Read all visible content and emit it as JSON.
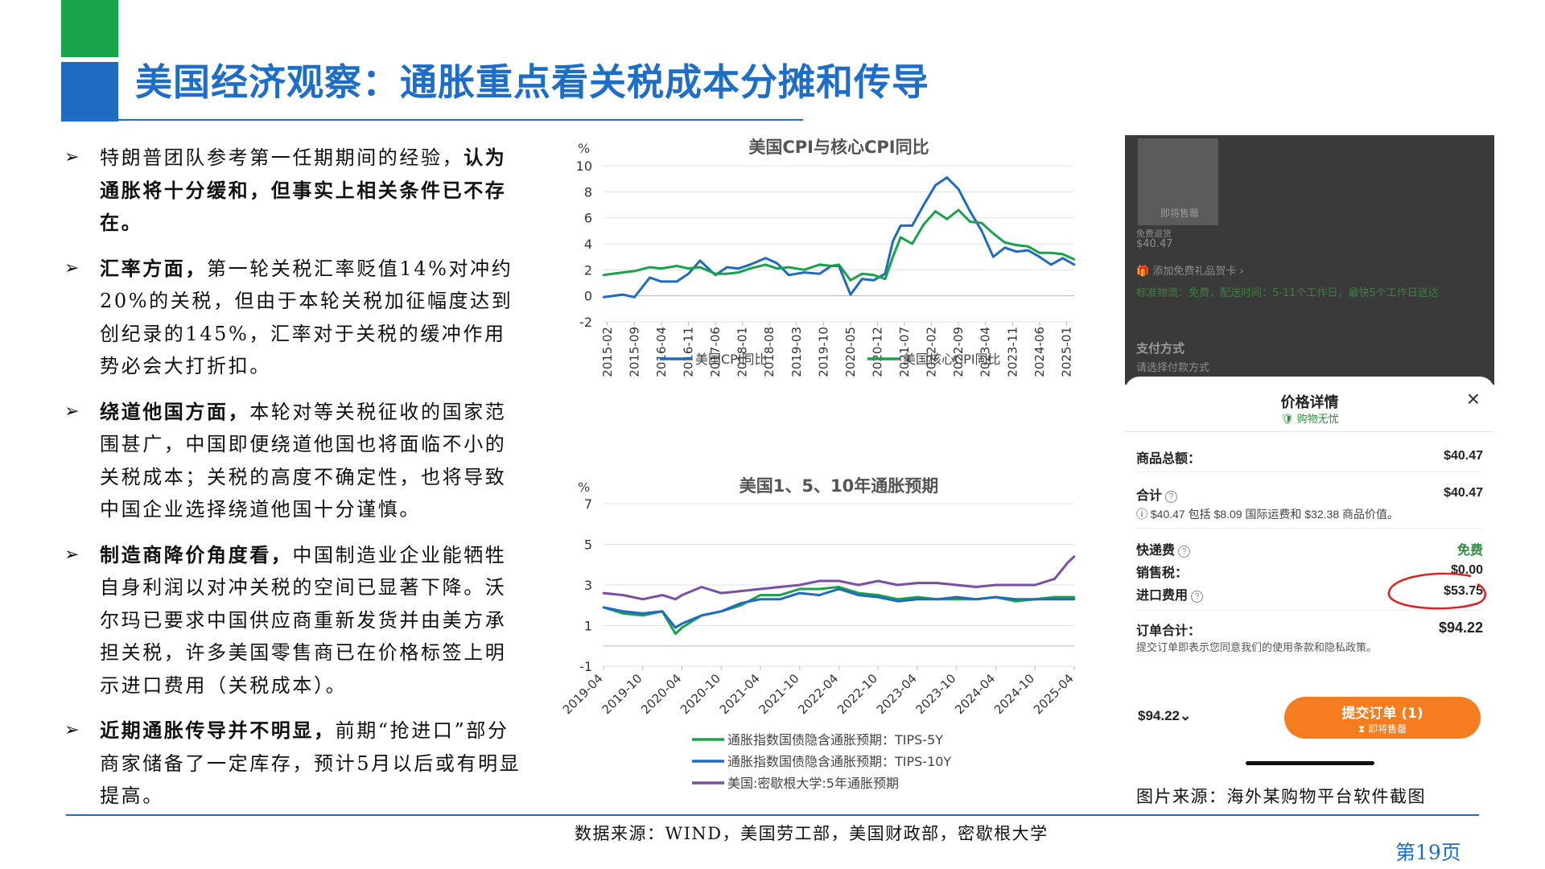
{
  "slide": {
    "title": "美国经济观察：通胀重点看关税成本分摊和传导",
    "source": "数据来源：WIND，美国劳工部，美国财政部，密歇根大学",
    "page": "第19页",
    "colors": {
      "accent_blue": "#1e6ec8",
      "accent_green": "#19a34a"
    }
  },
  "bullets": [
    {
      "bold": "",
      "text_before": "特朗普团队参考第一任期期间的经验，",
      "bold_after": "认为通胀将十分缓和，但事实上相关条件已不存在。",
      "text_after": ""
    },
    {
      "bold": "汇率方面，",
      "text_before": "",
      "bold_after": "",
      "text_after": "第一轮关税汇率贬值14%对冲约20%的关税，但由于本轮关税加征幅度达到创纪录的145%，汇率对于关税的缓冲作用势必会大打折扣。"
    },
    {
      "bold": "绕道他国方面，",
      "text_before": "",
      "bold_after": "",
      "text_after": "本轮对等关税征收的国家范围甚广，中国即便绕道他国也将面临不小的关税成本；关税的高度不确定性，也将导致中国企业选择绕道他国十分谨慎。"
    },
    {
      "bold": "制造商降价角度看，",
      "text_before": "",
      "bold_after": "",
      "text_after": "中国制造业企业能牺牲自身利润以对冲关税的空间已显著下降。沃尔玛已要求中国供应商重新发货并由美方承担关税，许多美国零售商已在价格标签上明示进口费用（关税成本）。"
    },
    {
      "bold": "近期通胀传导并不明显，",
      "text_before": "",
      "bold_after": "",
      "text_after": "前期“抢进口”部分商家储备了一定库存，预计5月以后或有明显提高。"
    }
  ],
  "chart_data": [
    {
      "type": "line",
      "title": "美国CPI与核心CPI同比",
      "unit": "%",
      "ylim": [
        -2,
        10
      ],
      "yticks": [
        -2,
        0,
        2,
        4,
        6,
        8,
        10
      ],
      "grid": true,
      "legend": "bottom",
      "xtick_labels": [
        "2015-02",
        "2015-09",
        "2016-04",
        "2016-11",
        "2017-06",
        "2018-01",
        "2018-08",
        "2019-03",
        "2019-10",
        "2020-05",
        "2020-12",
        "2021-07",
        "2022-02",
        "2022-09",
        "2023-04",
        "2023-11",
        "2024-06",
        "2025-01"
      ],
      "x": [
        "2015-01",
        "2015-06",
        "2015-09",
        "2016-01",
        "2016-04",
        "2016-08",
        "2016-11",
        "2017-02",
        "2017-06",
        "2017-09",
        "2017-12",
        "2018-03",
        "2018-07",
        "2018-10",
        "2019-01",
        "2019-05",
        "2019-09",
        "2019-12",
        "2020-02",
        "2020-05",
        "2020-08",
        "2020-11",
        "2021-02",
        "2021-04",
        "2021-06",
        "2021-09",
        "2021-12",
        "2022-03",
        "2022-06",
        "2022-09",
        "2022-12",
        "2023-03",
        "2023-06",
        "2023-09",
        "2023-12",
        "2024-03",
        "2024-06",
        "2024-09",
        "2024-12",
        "2025-03"
      ],
      "series": [
        {
          "name": "美国CPI同比",
          "color": "#1f6bc2",
          "values": [
            -0.1,
            0.1,
            -0.1,
            1.4,
            1.1,
            1.1,
            1.7,
            2.7,
            1.6,
            2.2,
            2.1,
            2.4,
            2.9,
            2.5,
            1.6,
            1.8,
            1.7,
            2.3,
            2.3,
            0.1,
            1.3,
            1.2,
            1.7,
            4.2,
            5.4,
            5.4,
            7.0,
            8.5,
            9.1,
            8.2,
            6.5,
            5.0,
            3.0,
            3.7,
            3.4,
            3.5,
            3.0,
            2.4,
            2.9,
            2.4
          ]
        },
        {
          "name": "美国核心CPI同比",
          "color": "#1aa14b",
          "values": [
            1.6,
            1.8,
            1.9,
            2.2,
            2.1,
            2.3,
            2.1,
            2.2,
            1.7,
            1.7,
            1.8,
            2.1,
            2.4,
            2.1,
            2.2,
            2.0,
            2.4,
            2.3,
            2.4,
            1.2,
            1.7,
            1.6,
            1.3,
            3.0,
            4.5,
            4.0,
            5.5,
            6.5,
            5.9,
            6.6,
            5.7,
            5.6,
            4.8,
            4.1,
            3.9,
            3.8,
            3.3,
            3.3,
            3.2,
            2.8
          ]
        }
      ]
    },
    {
      "type": "line",
      "title": "美国1、5、10年通胀预期",
      "unit": "%",
      "ylim": [
        -1,
        7
      ],
      "yticks": [
        -1,
        1,
        3,
        5,
        7
      ],
      "grid": true,
      "legend": "bottom",
      "xtick_labels": [
        "2019-04",
        "2019-10",
        "2020-04",
        "2020-10",
        "2021-04",
        "2021-10",
        "2022-04",
        "2022-10",
        "2023-04",
        "2023-10",
        "2024-04",
        "2024-10",
        "2025-04"
      ],
      "x": [
        "2019-04",
        "2019-07",
        "2019-10",
        "2020-01",
        "2020-03",
        "2020-04",
        "2020-07",
        "2020-10",
        "2021-01",
        "2021-04",
        "2021-07",
        "2021-10",
        "2022-01",
        "2022-04",
        "2022-07",
        "2022-10",
        "2023-01",
        "2023-04",
        "2023-07",
        "2023-10",
        "2024-01",
        "2024-04",
        "2024-07",
        "2024-10",
        "2025-01",
        "2025-03",
        "2025-04"
      ],
      "series": [
        {
          "name": "通胀指数国债隐含通胀预期：TIPS-5Y",
          "color": "#1aa14b",
          "values": [
            1.9,
            1.6,
            1.5,
            1.7,
            0.6,
            0.9,
            1.5,
            1.7,
            2.0,
            2.5,
            2.5,
            2.8,
            2.8,
            2.9,
            2.6,
            2.5,
            2.3,
            2.4,
            2.3,
            2.3,
            2.3,
            2.4,
            2.2,
            2.3,
            2.4,
            2.4,
            2.4
          ]
        },
        {
          "name": "通胀指数国债隐含通胀预期：TIPS-10Y",
          "color": "#1f6bc2",
          "values": [
            1.9,
            1.7,
            1.6,
            1.7,
            0.9,
            1.1,
            1.5,
            1.7,
            2.1,
            2.3,
            2.3,
            2.6,
            2.5,
            2.8,
            2.5,
            2.4,
            2.2,
            2.3,
            2.3,
            2.4,
            2.3,
            2.4,
            2.3,
            2.3,
            2.3,
            2.3,
            2.3
          ]
        },
        {
          "name": "美国:密歇根大学:5年通胀预期",
          "color": "#7b4ea3",
          "values": [
            2.6,
            2.5,
            2.3,
            2.5,
            2.3,
            2.5,
            2.9,
            2.6,
            2.7,
            2.8,
            2.9,
            3.0,
            3.2,
            3.2,
            3.0,
            3.2,
            3.0,
            3.1,
            3.1,
            3.0,
            2.9,
            3.0,
            3.0,
            3.0,
            3.3,
            4.1,
            4.4
          ]
        }
      ]
    }
  ],
  "phone": {
    "dim": {
      "thumb_badge": "即将售罄",
      "free_return": "免费退货",
      "price": "$40.47",
      "gift": "添加免费礼品贺卡",
      "shipping": "标准物流：免费，配送时间：5-11个工作日，最快5个工作日送达",
      "pay_title": "支付方式",
      "pay_select": "请选择付款方式"
    },
    "sheet": {
      "title": "价格详情",
      "subtitle": "购物无忧",
      "rows": [
        {
          "label": "商品总额：",
          "value": "$40.47"
        },
        {
          "label": "合计",
          "value": "$40.47"
        },
        {
          "label": "快递费",
          "value": "免费"
        },
        {
          "label": "销售税：",
          "value": "$0.00"
        },
        {
          "label": "进口费用",
          "value": "$53.75"
        },
        {
          "label": "订单合计：",
          "value": "$94.22"
        }
      ],
      "note": "$40.47 包括 $8.09 国际运费和 $32.38 商品价值。",
      "terms": "提交订单即表示您同意我们的使用条款和隐私政策。",
      "total_small": "$94.22",
      "submit": "提交订单 (1)",
      "submit_sub": "即将售罄"
    }
  },
  "image_caption": "图片来源：海外某购物平台软件截图"
}
